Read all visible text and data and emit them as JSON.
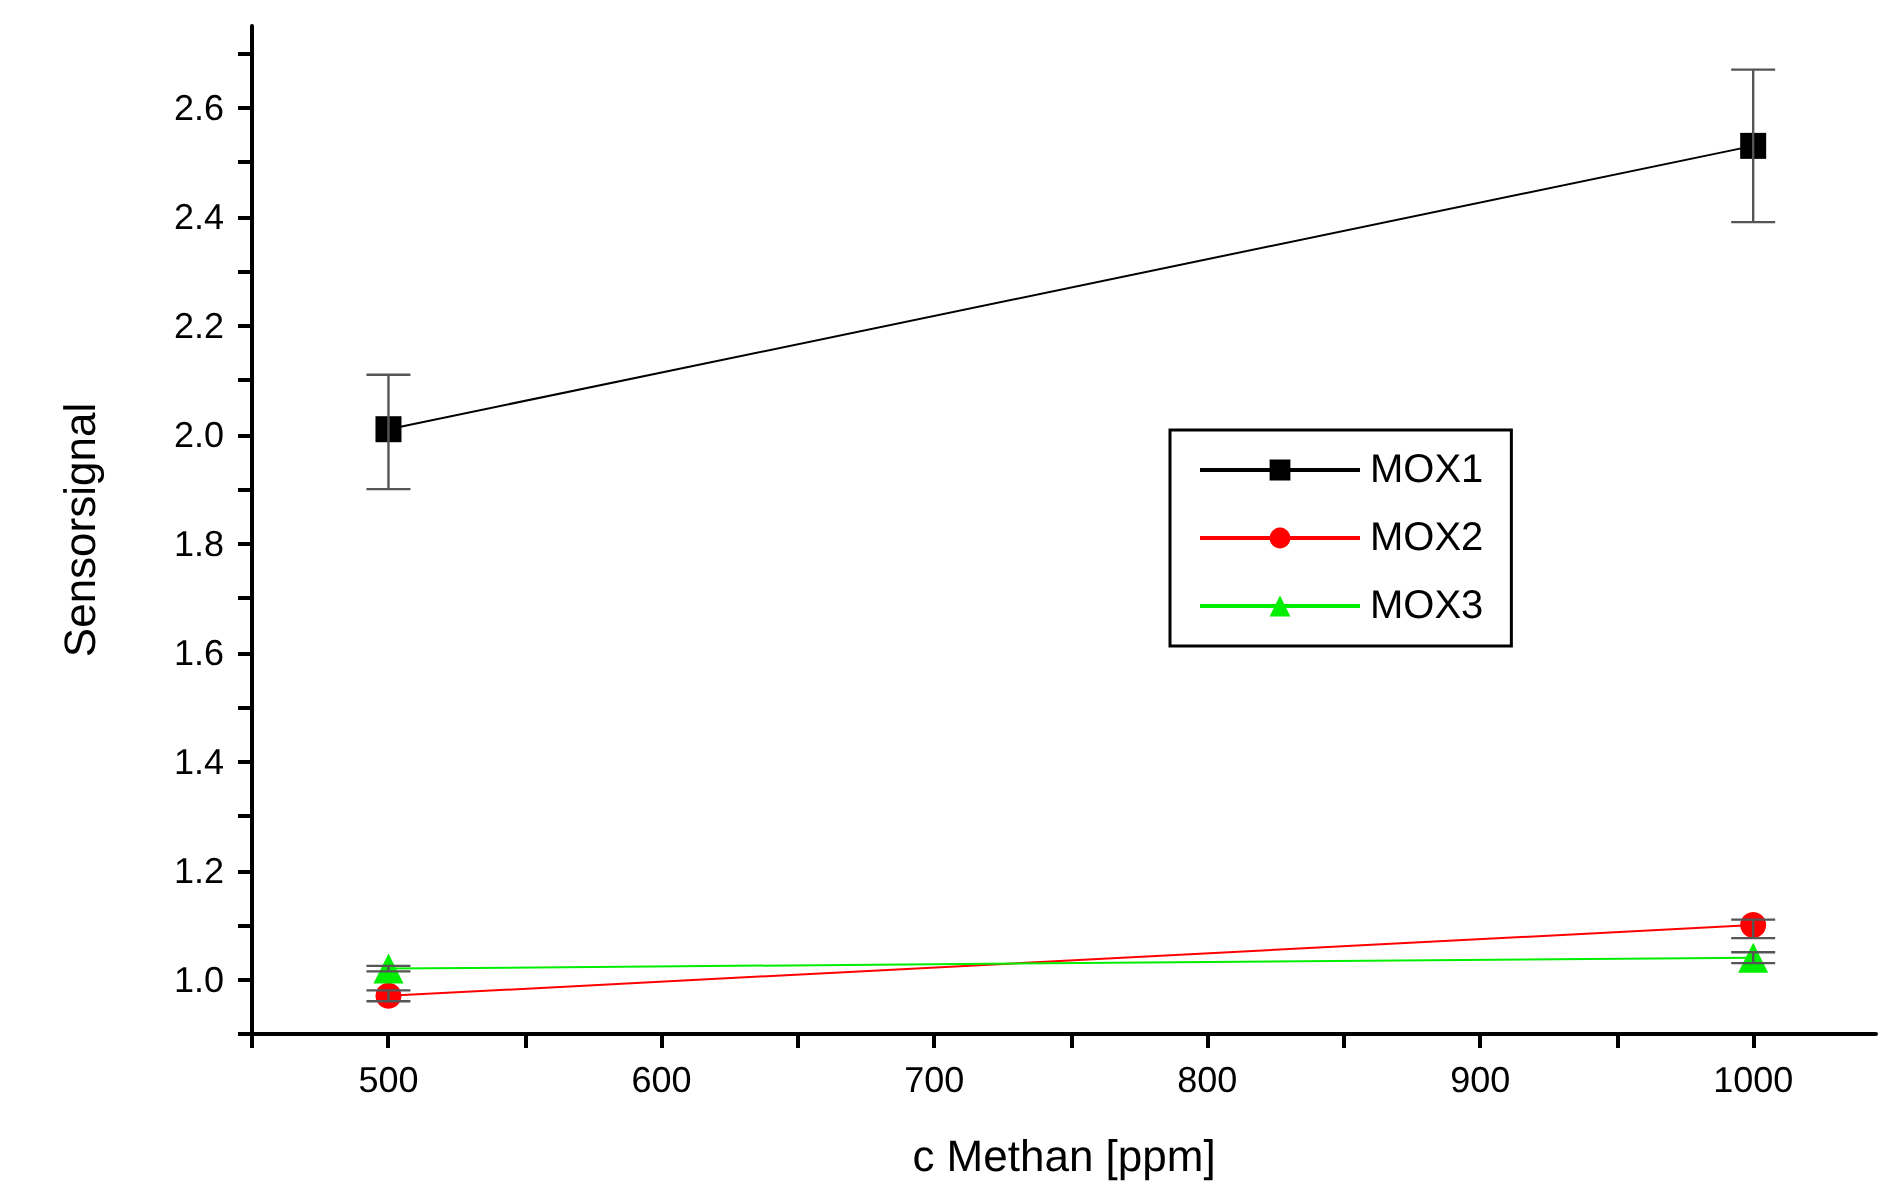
{
  "chart_data": {
    "type": "line",
    "xlabel": "c Methan [ppm]",
    "ylabel": "Sensorsignal",
    "xlim": [
      450,
      1045
    ],
    "ylim": [
      0.9,
      2.75
    ],
    "xticks": [
      {
        "value": 450,
        "label": null
      },
      500,
      {
        "value": 550,
        "label": null
      },
      600,
      {
        "value": 650,
        "label": null
      },
      700,
      {
        "value": 750,
        "label": null
      },
      800,
      {
        "value": 850,
        "label": null
      },
      900,
      {
        "value": 950,
        "label": null
      },
      1000
    ],
    "yticks": [
      {
        "value": 0.9,
        "label": null
      },
      {
        "value": 1.0,
        "label": "1.0"
      },
      {
        "value": 1.1,
        "label": null
      },
      {
        "value": 1.2,
        "label": "1.2"
      },
      {
        "value": 1.3,
        "label": null
      },
      {
        "value": 1.4,
        "label": "1.4"
      },
      {
        "value": 1.5,
        "label": null
      },
      {
        "value": 1.6,
        "label": "1.6"
      },
      {
        "value": 1.7,
        "label": null
      },
      {
        "value": 1.8,
        "label": "1.8"
      },
      {
        "value": 1.9,
        "label": null
      },
      {
        "value": 2.0,
        "label": "2.0"
      },
      {
        "value": 2.1,
        "label": null
      },
      {
        "value": 2.2,
        "label": "2.2"
      },
      {
        "value": 2.3,
        "label": null
      },
      {
        "value": 2.4,
        "label": "2.4"
      },
      {
        "value": 2.5,
        "label": null
      },
      {
        "value": 2.6,
        "label": "2.6"
      },
      {
        "value": 2.7,
        "label": null
      }
    ],
    "x": [
      500,
      1000
    ],
    "grid": false,
    "legend": "right",
    "line_style": "solid",
    "series": [
      {
        "name": "MOX1",
        "color": "#000000",
        "marker": "square",
        "values": [
          2.01,
          2.53
        ],
        "errors": [
          [
            1.9,
            2.11
          ],
          [
            2.39,
            2.67
          ]
        ]
      },
      {
        "name": "MOX2",
        "color": "#ff0000",
        "marker": "circle",
        "values": [
          0.97,
          1.1
        ],
        "errors": [
          [
            0.96,
            0.98
          ],
          [
            1.076,
            1.11
          ]
        ]
      },
      {
        "name": "MOX3",
        "color": "#00ee00",
        "marker": "triangle",
        "values": [
          1.02,
          1.04
        ],
        "errors": [
          [
            1.015,
            1.025
          ],
          [
            1.03,
            1.05
          ]
        ]
      }
    ]
  }
}
